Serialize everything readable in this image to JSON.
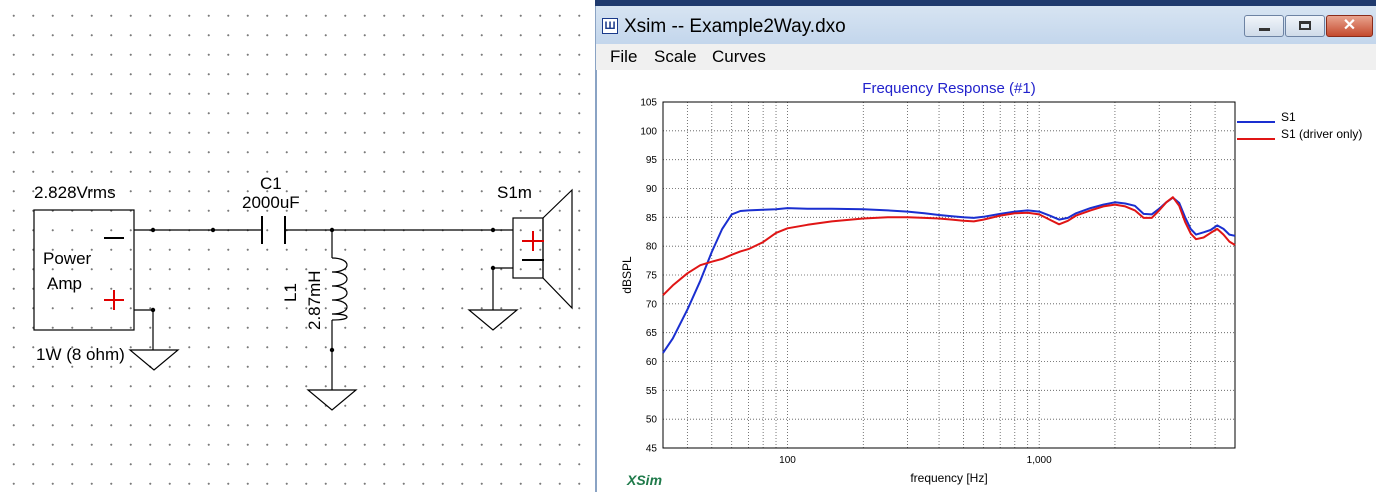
{
  "schematic": {
    "amp_voltage": "2.828Vrms",
    "amp_label_line1": "Power",
    "amp_label_line2": "Amp",
    "amp_power": "1W (8 ohm)",
    "cap_name": "C1",
    "cap_value": "2000uF",
    "ind_name": "L1",
    "ind_value": "2.87mH",
    "speaker_name": "S1m",
    "colors": {
      "polarity": "#e00000",
      "wire": "#000000"
    }
  },
  "window": {
    "title": "Xsim -- Example2Way.dxo",
    "icon": "xsim-app-icon",
    "close_glyph": "✕",
    "menu": [
      "File",
      "Scale",
      "Curves"
    ]
  },
  "chart_data": {
    "type": "line",
    "title": "Frequency Response (#1)",
    "xlabel": "frequency [Hz]",
    "ylabel": "dBSPL",
    "x_scale": "log",
    "xlim": [
      32,
      6000
    ],
    "ylim": [
      45,
      105
    ],
    "yticks": [
      45,
      50,
      55,
      60,
      65,
      70,
      75,
      80,
      85,
      90,
      95,
      100,
      105
    ],
    "xtick_labels": [
      {
        "value": 100,
        "label": "100"
      },
      {
        "value": 1000,
        "label": "1,000"
      }
    ],
    "grid": true,
    "legend_position": "right",
    "watermark": "XSim",
    "colors": {
      "title": "#2222cc",
      "watermark": "#1f7a4a"
    },
    "series": [
      {
        "name": "S1",
        "color": "#1a2fd0",
        "points": [
          [
            32,
            61.5
          ],
          [
            35,
            64
          ],
          [
            40,
            69
          ],
          [
            45,
            74
          ],
          [
            50,
            79
          ],
          [
            55,
            83
          ],
          [
            60,
            85.5
          ],
          [
            65,
            86.1
          ],
          [
            70,
            86.2
          ],
          [
            80,
            86.3
          ],
          [
            90,
            86.4
          ],
          [
            100,
            86.6
          ],
          [
            120,
            86.5
          ],
          [
            150,
            86.5
          ],
          [
            200,
            86.4
          ],
          [
            250,
            86.2
          ],
          [
            300,
            86
          ],
          [
            350,
            85.7
          ],
          [
            400,
            85.4
          ],
          [
            450,
            85.2
          ],
          [
            500,
            85
          ],
          [
            550,
            84.9
          ],
          [
            600,
            85.1
          ],
          [
            700,
            85.6
          ],
          [
            800,
            86
          ],
          [
            900,
            86.2
          ],
          [
            1000,
            86
          ],
          [
            1100,
            85.3
          ],
          [
            1200,
            84.6
          ],
          [
            1300,
            84.9
          ],
          [
            1400,
            85.7
          ],
          [
            1600,
            86.6
          ],
          [
            1800,
            87.2
          ],
          [
            2000,
            87.6
          ],
          [
            2200,
            87.4
          ],
          [
            2400,
            87
          ],
          [
            2600,
            85.6
          ],
          [
            2800,
            85.5
          ],
          [
            3000,
            86.5
          ],
          [
            3200,
            87.6
          ],
          [
            3400,
            88.4
          ],
          [
            3600,
            87.5
          ],
          [
            3800,
            85
          ],
          [
            4000,
            83
          ],
          [
            4200,
            82
          ],
          [
            4500,
            82.4
          ],
          [
            4800,
            82.8
          ],
          [
            5100,
            83.6
          ],
          [
            5400,
            83
          ],
          [
            5700,
            82
          ],
          [
            6000,
            81.8
          ]
        ]
      },
      {
        "name": "S1 (driver only)",
        "color": "#e01515",
        "points": [
          [
            32,
            71.5
          ],
          [
            35,
            73.2
          ],
          [
            40,
            75.3
          ],
          [
            45,
            76.7
          ],
          [
            50,
            77.3
          ],
          [
            55,
            77.8
          ],
          [
            60,
            78.5
          ],
          [
            65,
            79.1
          ],
          [
            70,
            79.5
          ],
          [
            80,
            80.7
          ],
          [
            90,
            82.3
          ],
          [
            100,
            83.1
          ],
          [
            120,
            83.7
          ],
          [
            150,
            84.3
          ],
          [
            200,
            84.8
          ],
          [
            250,
            85
          ],
          [
            300,
            85
          ],
          [
            350,
            84.9
          ],
          [
            400,
            84.8
          ],
          [
            450,
            84.6
          ],
          [
            500,
            84.4
          ],
          [
            550,
            84.3
          ],
          [
            600,
            84.6
          ],
          [
            700,
            85.3
          ],
          [
            800,
            85.7
          ],
          [
            900,
            85.8
          ],
          [
            1000,
            85.5
          ],
          [
            1100,
            84.6
          ],
          [
            1200,
            83.8
          ],
          [
            1300,
            84.4
          ],
          [
            1400,
            85.3
          ],
          [
            1600,
            86.2
          ],
          [
            1800,
            86.9
          ],
          [
            2000,
            87.2
          ],
          [
            2200,
            86.9
          ],
          [
            2400,
            86.2
          ],
          [
            2600,
            84.9
          ],
          [
            2800,
            84.9
          ],
          [
            3000,
            86.2
          ],
          [
            3200,
            87.6
          ],
          [
            3400,
            88.5
          ],
          [
            3600,
            87
          ],
          [
            3800,
            84.2
          ],
          [
            4000,
            82.2
          ],
          [
            4200,
            81.2
          ],
          [
            4500,
            81.5
          ],
          [
            4800,
            82.3
          ],
          [
            5100,
            83
          ],
          [
            5400,
            82
          ],
          [
            5700,
            80.8
          ],
          [
            6000,
            80.2
          ]
        ]
      }
    ]
  }
}
